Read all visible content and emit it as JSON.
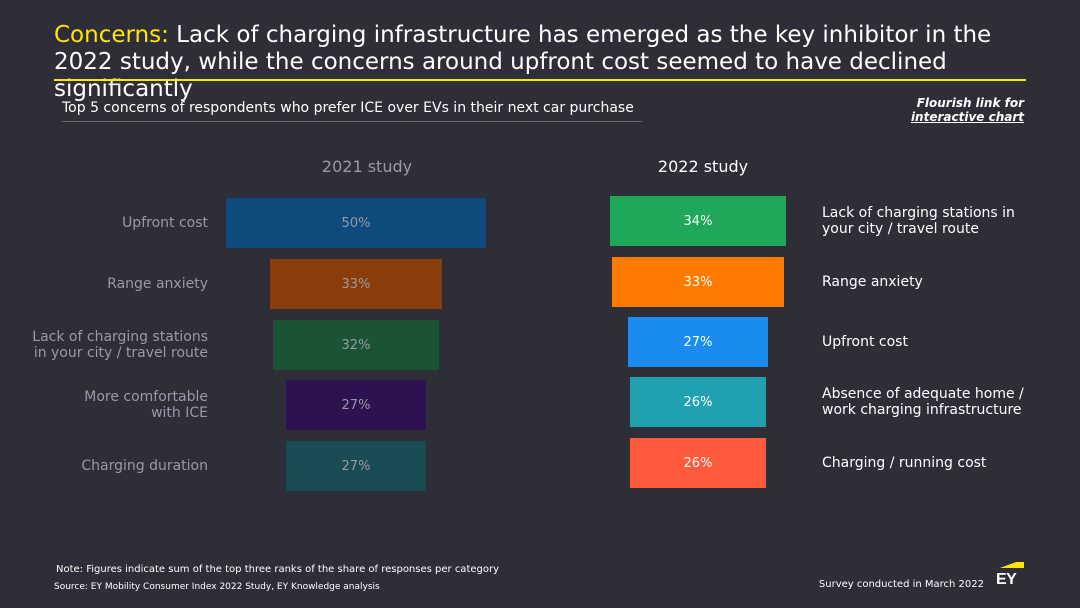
{
  "header": {
    "title_highlight": "Concerns:",
    "title_rest": " Lack of charging infrastructure has emerged as the key inhibitor in the 2022 study, while the concerns around upfront cost seemed to have declined significantly",
    "subtitle": "Top 5 concerns of respondents who prefer ICE over EVs in their next car purchase",
    "flourish_line1": "Flourish link for",
    "flourish_line2": "interactive chart"
  },
  "chart_data": [
    {
      "type": "bar",
      "title": "2021 study",
      "categories": [
        "Upfront cost",
        "Range anxiety",
        "Lack of charging stations in your city / travel route",
        "More comfortable with ICE",
        "Charging duration"
      ],
      "category_lines": [
        [
          "Upfront cost"
        ],
        [
          "Range anxiety"
        ],
        [
          "Lack of charging stations",
          "in your city / travel route"
        ],
        [
          "More comfortable",
          "with ICE"
        ],
        [
          "Charging duration"
        ]
      ],
      "values": [
        50,
        33,
        32,
        27,
        27
      ],
      "value_labels": [
        "50%",
        "33%",
        "32%",
        "27%",
        "27%"
      ],
      "colors": [
        "#0f4a7d",
        "#8a3d0a",
        "#1b5434",
        "#2c124f",
        "#194b52"
      ],
      "unit": "%"
    },
    {
      "type": "bar",
      "title": "2022 study",
      "categories": [
        "Lack of charging stations in your city / travel route",
        "Range anxiety",
        "Upfront cost",
        "Absence of adequate home / work charging infrastructure",
        "Charging / running cost"
      ],
      "category_lines": [
        [
          "Lack of charging stations in",
          "your city / travel route"
        ],
        [
          "Range anxiety"
        ],
        [
          "Upfront cost"
        ],
        [
          "Absence of adequate home /",
          "work charging infrastructure"
        ],
        [
          "Charging / running cost"
        ]
      ],
      "values": [
        34,
        33,
        27,
        26,
        26
      ],
      "value_labels": [
        "34%",
        "33%",
        "27%",
        "26%",
        "26%"
      ],
      "colors": [
        "#1fa85a",
        "#ff7a00",
        "#1a8cf0",
        "#21a1b0",
        "#ff5a3c"
      ],
      "unit": "%"
    }
  ],
  "footer": {
    "note": "Note: Figures indicate sum of the top three ranks of the share of responses per category",
    "source": "Source: EY Mobility Consumer Index 2022 Study, EY Knowledge analysis",
    "survey": "Survey conducted in March 2022",
    "logo_text": "EY",
    "logo_color": "#ffe600"
  }
}
